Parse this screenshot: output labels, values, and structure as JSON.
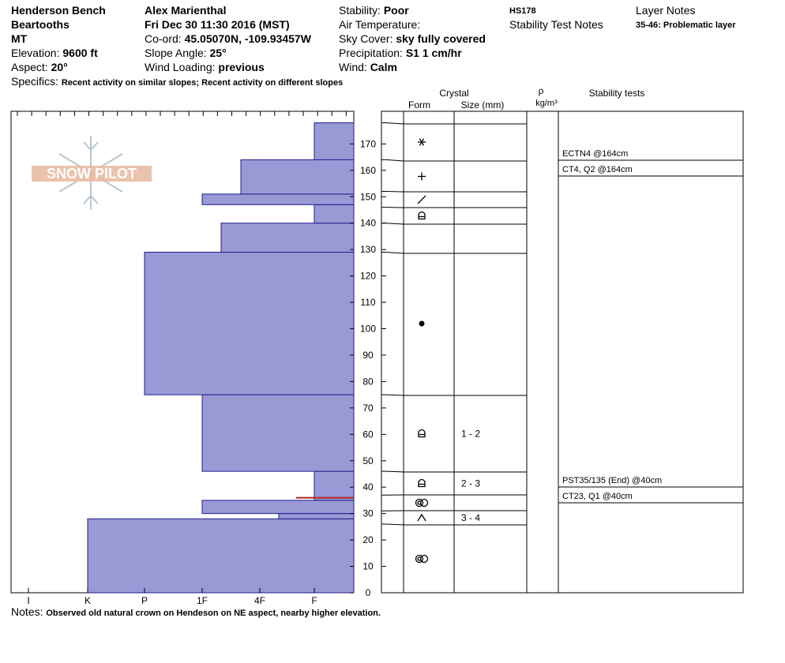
{
  "header": {
    "location": "Henderson Bench",
    "range": "Beartooths",
    "state": "MT",
    "elevation_label": "Elevation:",
    "elevation_value": "9600 ft",
    "aspect_label": "Aspect:",
    "aspect_value": "20°",
    "observer": "Alex Marienthal",
    "datetime": "Fri Dec 30 11:30 2016 (MST)",
    "coord_label": "Co-ord:",
    "coord_value": "45.05070N, -109.93457W",
    "slope_label": "Slope Angle:",
    "slope_value": "25°",
    "wind_loading_label": "Wind Loading:",
    "wind_loading_value": "previous",
    "stability_label": "Stability:",
    "stability_value": "Poor",
    "air_temp_label": "Air Temperature:",
    "sky_label": "Sky Cover:",
    "sky_value": "sky fully covered",
    "precip_label": "Precipitation:",
    "precip_value": "S1 1 cm/hr",
    "wind_label": "Wind:",
    "wind_value": "Calm",
    "id": "HS178",
    "stability_test_notes": "Stability Test Notes",
    "layer_notes": "Layer Notes",
    "layer_note_1": "35-46: Problematic layer",
    "specifics_label": "Specifics:",
    "specifics_value": "Recent activity on similar slopes; Recent activity on different slopes",
    "notes_label": "Notes:",
    "notes_value": "Observed old natural crown on Hendeson on NE aspect, nearby higher elevation."
  },
  "watermark": "SNOW PILOT",
  "columns": {
    "crystal": "Crystal",
    "form": "Form",
    "size": "Size (mm)",
    "rho": "ρ",
    "density_unit": "kg/m³",
    "stability_tests": "Stability tests"
  },
  "colors": {
    "hardness_fill": "#9999d6",
    "hardness_stroke": "#1e1e8c",
    "weak_layer": "#b22222"
  },
  "chart_data": {
    "type": "bar",
    "orientation": "horizontal",
    "x_categories": [
      "I",
      "K",
      "P",
      "1F",
      "4F",
      "F"
    ],
    "ylim": [
      0,
      180
    ],
    "yticks": [
      0,
      10,
      20,
      30,
      40,
      50,
      60,
      70,
      80,
      90,
      100,
      110,
      120,
      130,
      140,
      150,
      160,
      170
    ],
    "hardness_layers": [
      {
        "bottom": 0,
        "top": 28,
        "hardness": "K"
      },
      {
        "bottom": 28,
        "top": 30,
        "hardness": "4F-"
      },
      {
        "bottom": 30,
        "top": 35,
        "hardness": "1F"
      },
      {
        "bottom": 35,
        "top": 36,
        "hardness": "F"
      },
      {
        "bottom": 36,
        "top": 46,
        "hardness": "F"
      },
      {
        "bottom": 46,
        "top": 75,
        "hardness": "1F"
      },
      {
        "bottom": 75,
        "top": 129,
        "hardness": "P"
      },
      {
        "bottom": 129,
        "top": 140,
        "hardness": "1F-"
      },
      {
        "bottom": 140,
        "top": 147,
        "hardness": "F"
      },
      {
        "bottom": 147,
        "top": 151,
        "hardness": "1F"
      },
      {
        "bottom": 151,
        "top": 164,
        "hardness": "4F+"
      },
      {
        "bottom": 164,
        "top": 178,
        "hardness": "F"
      }
    ],
    "weak_layer_at": 36,
    "crystal_layers": [
      {
        "bottom": 0,
        "top": 26,
        "form": "melt-freeze",
        "size": ""
      },
      {
        "bottom": 26,
        "top": 31,
        "form": "depth-hoar",
        "size": "3 - 4"
      },
      {
        "bottom": 31,
        "top": 37,
        "form": "melt-freeze",
        "size": ""
      },
      {
        "bottom": 37,
        "top": 46,
        "form": "faceted-rounded",
        "size": "2 - 3"
      },
      {
        "bottom": 46,
        "top": 75,
        "form": "faceted-rounded",
        "size": "1 - 2"
      },
      {
        "bottom": 75,
        "top": 129,
        "form": "rounded-grain",
        "size": ""
      },
      {
        "bottom": 129,
        "top": 140,
        "form": "",
        "size": ""
      },
      {
        "bottom": 140,
        "top": 146,
        "form": "faceted-rounded",
        "size": ""
      },
      {
        "bottom": 146,
        "top": 152,
        "form": "decomposing",
        "size": ""
      },
      {
        "bottom": 152,
        "top": 164,
        "form": "precipitation-particle",
        "size": ""
      },
      {
        "bottom": 164,
        "top": 178,
        "form": "stellar",
        "size": ""
      }
    ],
    "stability_tests": [
      {
        "text": "ECTN4 @164cm"
      },
      {
        "text": "CT4, Q2 @164cm"
      },
      {
        "text": "PST35/135 (End) @40cm"
      },
      {
        "text": "CT23, Q1 @40cm"
      }
    ]
  }
}
